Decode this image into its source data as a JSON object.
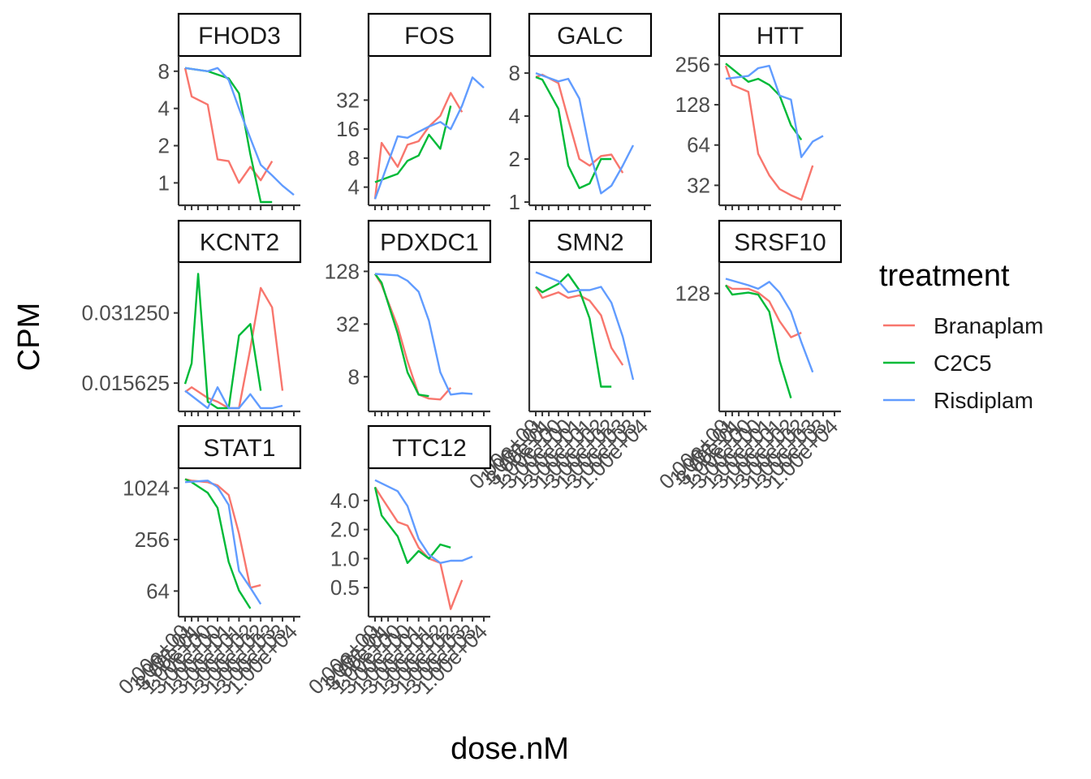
{
  "chart_data": {
    "type": "line",
    "xlabel": "dose.nM",
    "ylabel": "CPM",
    "y_scale": "log2",
    "legend": {
      "title": "treatment",
      "placement": "right",
      "entries": [
        {
          "name": "Branaplam",
          "color": "#F8766D"
        },
        {
          "name": "C2C5",
          "color": "#00BA38"
        },
        {
          "name": "Risdiplam",
          "color": "#619CFF"
        }
      ]
    },
    "x_tick_labels": [
      "0.00e+00",
      "1.00e-01",
      "3.00e-01",
      "1.00e+00",
      "3.00e+00",
      "1.00e+01",
      "3.00e+01",
      "1.00e+02",
      "3.00e+02",
      "1.00e+03",
      "3.00e+03",
      "1.00e+04"
    ],
    "panels": [
      {
        "name": "FHOD3",
        "yticks": [
          1,
          2,
          4,
          8
        ],
        "ylim": [
          0.7,
          10
        ],
        "series": [
          {
            "name": "Branaplam",
            "x": [
              0,
              0.1,
              1,
              3,
              10,
              30,
              100,
              300,
              1000,
              3000
            ],
            "y": [
              8.5,
              5,
              4.3,
              1.55,
              1.5,
              1.0,
              1.35,
              1.05,
              1.5,
              null
            ]
          },
          {
            "name": "C2C5",
            "x": [
              0,
              1,
              10,
              30,
              100,
              300,
              1000,
              3000
            ],
            "y": [
              8.5,
              8.0,
              7.0,
              5.3,
              1.7,
              0.62,
              0.7,
              null
            ]
          },
          {
            "name": "Risdiplam",
            "x": [
              0,
              1,
              3,
              10,
              30,
              100,
              300,
              1000,
              3000,
              10000
            ],
            "y": [
              8.5,
              8.0,
              8.5,
              6.8,
              4.0,
              2.3,
              1.4,
              1.15,
              0.95,
              0.8
            ]
          }
        ]
      },
      {
        "name": "FOS",
        "yticks": [
          4,
          8,
          16,
          32
        ],
        "ylim": [
          2.8,
          85
        ],
        "series": [
          {
            "name": "Branaplam",
            "x": [
              0,
              0.1,
              1,
              3,
              10,
              30,
              100,
              300,
              1000,
              3000
            ],
            "y": [
              3.0,
              11.5,
              6.5,
              11,
              12,
              17,
              22,
              38,
              24,
              null
            ]
          },
          {
            "name": "C2C5",
            "x": [
              0,
              1,
              3,
              10,
              30,
              100,
              300,
              1000
            ],
            "y": [
              4.5,
              5.5,
              7.5,
              8.5,
              14,
              10,
              28,
              null
            ]
          },
          {
            "name": "Risdiplam",
            "x": [
              0,
              1,
              3,
              10,
              30,
              100,
              300,
              1000,
              3000,
              10000
            ],
            "y": [
              3.0,
              13.5,
              13,
              15,
              17,
              19,
              16,
              28,
              55,
              43
            ]
          }
        ]
      },
      {
        "name": "GALC",
        "yticks": [
          1,
          2,
          4,
          8
        ],
        "ylim": [
          1,
          10
        ],
        "series": [
          {
            "name": "Branaplam",
            "x": [
              0,
              0.1,
              1,
              3,
              10,
              30,
              100,
              300,
              1000,
              3000
            ],
            "y": [
              7.5,
              7.8,
              6.8,
              3.8,
              2.0,
              1.8,
              2.1,
              2.15,
              1.6,
              null
            ]
          },
          {
            "name": "C2C5",
            "x": [
              0,
              0.1,
              1,
              3,
              10,
              30,
              100,
              300,
              1000
            ],
            "y": [
              7.5,
              7.2,
              4.5,
              1.8,
              1.25,
              1.35,
              2.0,
              2.0,
              null
            ]
          },
          {
            "name": "Risdiplam",
            "x": [
              0,
              1,
              3,
              10,
              30,
              100,
              300,
              1000,
              3000,
              10000
            ],
            "y": [
              8.0,
              7.0,
              7.3,
              5.3,
              2.3,
              1.15,
              1.3,
              1.8,
              2.5,
              null
            ]
          }
        ]
      },
      {
        "name": "HTT",
        "yticks": [
          32,
          64,
          128,
          256
        ],
        "ylim": [
          24,
          280
        ],
        "series": [
          {
            "name": "Branaplam",
            "x": [
              0,
              0.1,
              1,
              3,
              10,
              30,
              100,
              300,
              1000,
              3000
            ],
            "y": [
              250,
              180,
              160,
              55,
              38,
              30,
              27,
              25,
              45,
              null
            ]
          },
          {
            "name": "C2C5",
            "x": [
              0,
              1,
              3,
              10,
              30,
              100,
              300,
              1000
            ],
            "y": [
              260,
              190,
              200,
              180,
              150,
              90,
              70,
              null
            ]
          },
          {
            "name": "Risdiplam",
            "x": [
              0,
              1,
              3,
              10,
              30,
              100,
              300,
              1000,
              3000,
              10000
            ],
            "y": [
              200,
              210,
              240,
              250,
              150,
              140,
              52,
              68,
              75,
              null
            ]
          }
        ]
      },
      {
        "name": "KCNT2",
        "yticks": [
          0.015625,
          0.03125
        ],
        "yticklabels": [
          "0.015625",
          "0.031250"
        ],
        "ylim": [
          0.0122,
          0.05
        ],
        "series": [
          {
            "name": "Branaplam",
            "x": [
              0,
              0.1,
              1,
              3,
              10,
              30,
              100,
              300,
              1000,
              3000
            ],
            "y": [
              0.0143,
              0.015,
              0.0135,
              0.013,
              0.012,
              0.012,
              0.022,
              0.04,
              0.033,
              0.0145
            ]
          },
          {
            "name": "C2C5",
            "x": [
              0,
              0.1,
              0.3,
              1,
              3,
              10,
              30,
              100,
              300,
              1000
            ],
            "y": [
              0.0155,
              0.019,
              0.046,
              0.013,
              0.012,
              0.012,
              0.025,
              0.028,
              0.0145,
              null
            ]
          },
          {
            "name": "Risdiplam",
            "x": [
              0,
              1,
              3,
              10,
              30,
              100,
              300,
              1000,
              3000,
              10000
            ],
            "y": [
              0.0145,
              0.012,
              0.015,
              0.012,
              0.012,
              0.014,
              0.012,
              0.012,
              0.0125,
              null
            ]
          }
        ]
      },
      {
        "name": "PDXDC1",
        "yticks": [
          8,
          32,
          128
        ],
        "ylim": [
          3.5,
          150
        ],
        "series": [
          {
            "name": "Branaplam",
            "x": [
              0,
              0.1,
              1,
              3,
              10,
              30,
              100,
              300,
              1000,
              3000
            ],
            "y": [
              120,
              90,
              30,
              12,
              5.0,
              4.5,
              4.4,
              6.0,
              null,
              null
            ]
          },
          {
            "name": "C2C5",
            "x": [
              0,
              0.1,
              1,
              3,
              10,
              30,
              100,
              300
            ],
            "y": [
              120,
              95,
              25,
              9,
              5.0,
              4.8,
              null,
              null
            ]
          },
          {
            "name": "Risdiplam",
            "x": [
              0,
              1,
              3,
              10,
              30,
              100,
              300,
              1000,
              3000,
              10000
            ],
            "y": [
              120,
              115,
              100,
              75,
              35,
              9,
              5.0,
              5.2,
              5.1,
              null
            ]
          }
        ]
      },
      {
        "name": "SMN2",
        "yticks": [],
        "ylim": [
          0.01,
          1.0
        ],
        "series": [
          {
            "name": "Branaplam",
            "x": [
              0,
              0.1,
              1,
              3,
              10,
              30,
              100,
              300,
              1000,
              3000
            ],
            "y": [
              0.5,
              0.35,
              0.42,
              0.35,
              0.38,
              0.32,
              0.2,
              0.07,
              0.04,
              null
            ]
          },
          {
            "name": "C2C5",
            "x": [
              0,
              0.1,
              1,
              3,
              10,
              30,
              100,
              300
            ],
            "y": [
              0.5,
              0.42,
              0.55,
              0.75,
              0.45,
              0.18,
              0.02,
              0.02
            ]
          },
          {
            "name": "Risdiplam",
            "x": [
              0,
              1,
              3,
              10,
              30,
              100,
              300,
              1000,
              3000,
              10000
            ],
            "y": [
              0.8,
              0.6,
              0.42,
              0.45,
              0.45,
              0.5,
              0.3,
              0.1,
              0.025,
              null
            ]
          }
        ]
      },
      {
        "name": "SRSF10",
        "yticks": [
          128
        ],
        "ylim": [
          14,
          220
        ],
        "series": [
          {
            "name": "Branaplam",
            "x": [
              0,
              0.1,
              1,
              3,
              10,
              30,
              100,
              300,
              1000,
              3000
            ],
            "y": [
              150,
              140,
              140,
              130,
              110,
              75,
              55,
              60,
              null,
              null
            ]
          },
          {
            "name": "C2C5",
            "x": [
              0,
              0.1,
              1,
              3,
              10,
              30,
              100
            ],
            "y": [
              150,
              125,
              130,
              125,
              90,
              35,
              17
            ]
          },
          {
            "name": "Risdiplam",
            "x": [
              0,
              1,
              3,
              10,
              30,
              100,
              300,
              1000,
              3000,
              10000
            ],
            "y": [
              170,
              150,
              140,
              160,
              130,
              90,
              50,
              28,
              null,
              null
            ]
          }
        ]
      },
      {
        "name": "STAT1",
        "yticks": [
          64,
          256,
          1024
        ],
        "ylim": [
          35,
          1600
        ],
        "series": [
          {
            "name": "Branaplam",
            "x": [
              0,
              0.1,
              1,
              3,
              10,
              30,
              100,
              300,
              1000,
              3000
            ],
            "y": [
              1300,
              1250,
              1200,
              1100,
              850,
              300,
              70,
              75,
              null,
              null
            ]
          },
          {
            "name": "C2C5",
            "x": [
              0,
              0.1,
              1,
              3,
              10,
              30,
              100,
              300
            ],
            "y": [
              1300,
              1200,
              900,
              600,
              140,
              65,
              40,
              null
            ]
          },
          {
            "name": "Risdiplam",
            "x": [
              0,
              1,
              3,
              10,
              30,
              100,
              300,
              1000,
              3000,
              10000
            ],
            "y": [
              1200,
              1250,
              1050,
              650,
              110,
              70,
              45,
              null,
              null,
              null
            ]
          }
        ]
      },
      {
        "name": "TTC12",
        "yticks": [
          0.5,
          1.0,
          2.0,
          4.0
        ],
        "yticklabels": [
          "0.5",
          "1.0",
          "2.0",
          "4.0"
        ],
        "ylim": [
          0.27,
          8
        ],
        "series": [
          {
            "name": "Branaplam",
            "x": [
              0,
              0.1,
              1,
              3,
              10,
              30,
              100,
              300,
              1000,
              3000
            ],
            "y": [
              5.5,
              4.3,
              2.4,
              2.2,
              1.3,
              1.0,
              0.9,
              0.3,
              0.6,
              null
            ]
          },
          {
            "name": "C2C5",
            "x": [
              0,
              0.1,
              1,
              3,
              10,
              30,
              100,
              300
            ],
            "y": [
              5.5,
              2.8,
              1.7,
              0.9,
              1.2,
              1.0,
              1.4,
              1.3
            ]
          },
          {
            "name": "Risdiplam",
            "x": [
              0,
              1,
              3,
              10,
              30,
              100,
              300,
              1000,
              3000,
              10000
            ],
            "y": [
              6.5,
              5.0,
              3.5,
              1.6,
              1.1,
              0.9,
              0.95,
              0.95,
              1.05,
              null
            ]
          }
        ]
      }
    ]
  }
}
